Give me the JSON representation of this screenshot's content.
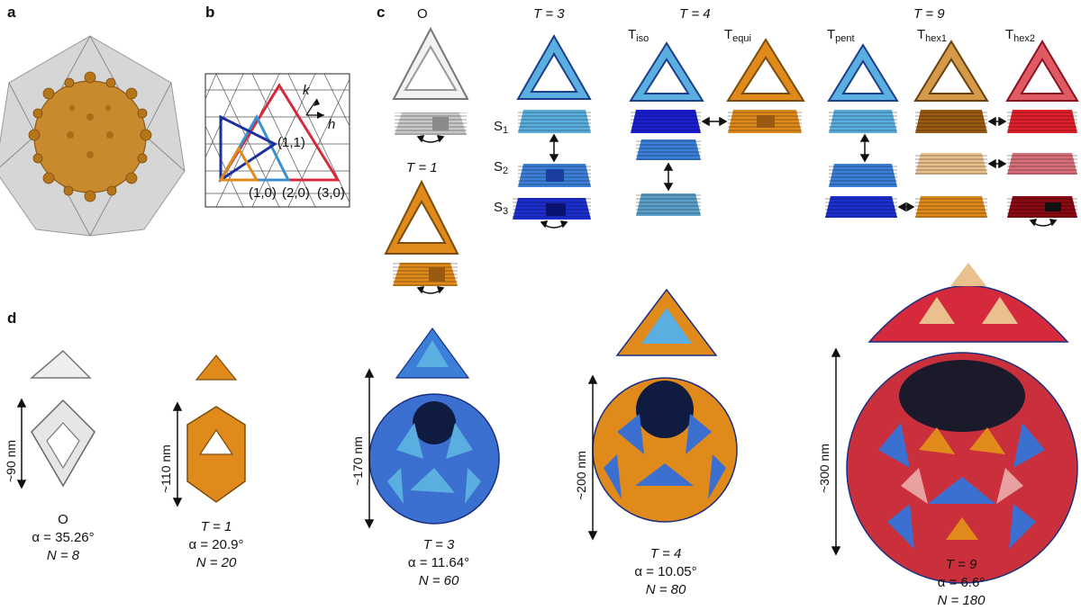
{
  "panels": {
    "a": "a",
    "b": "b",
    "c": "c",
    "d": "d"
  },
  "colors": {
    "gold": "#e08a1c",
    "light_blue": "#5aaee0",
    "mid_blue": "#3b7fd8",
    "dark_blue": "#1b2fb0",
    "red": "#d42a3c",
    "pink": "#e88a8a",
    "tan": "#e9c08e",
    "brown": "#9a5a12",
    "gray": "#c8c8c8"
  },
  "lattice": {
    "axis_k": "k",
    "axis_h": "h",
    "points": [
      "(1,1)",
      "(1,0)",
      "(2,0)",
      "(3,0)"
    ]
  },
  "panel_c": {
    "col_O": "O",
    "col_T3": "T = 3",
    "col_T4": "T = 4",
    "col_T9": "T = 9",
    "T4_sub": [
      {
        "main": "T",
        "sub": "iso"
      },
      {
        "main": "T",
        "sub": "equi"
      }
    ],
    "T9_sub": [
      {
        "main": "T",
        "sub": "pent"
      },
      {
        "main": "T",
        "sub": "hex1"
      },
      {
        "main": "T",
        "sub": "hex2"
      }
    ],
    "rows": [
      {
        "main": "S",
        "sub": "1"
      },
      {
        "main": "S",
        "sub": "2"
      },
      {
        "main": "S",
        "sub": "3"
      }
    ],
    "col_T1": "T = 1"
  },
  "panel_d": {
    "sizes": [
      "~90 nm",
      "~110 nm",
      "~170 nm",
      "~200 nm",
      "~300 nm"
    ],
    "items": [
      {
        "name": "O",
        "alpha": "α = 35.26°",
        "n": "N = 8"
      },
      {
        "name": "T = 1",
        "alpha": "α = 20.9°",
        "n": "N = 20"
      },
      {
        "name": "T = 3",
        "alpha": "α = 11.64°",
        "n": "N = 60"
      },
      {
        "name": "T = 4",
        "alpha": "α = 10.05°",
        "n": "N = 80"
      },
      {
        "name": "T = 9",
        "alpha": "α = 6.6°",
        "n": "N = 180"
      }
    ]
  }
}
